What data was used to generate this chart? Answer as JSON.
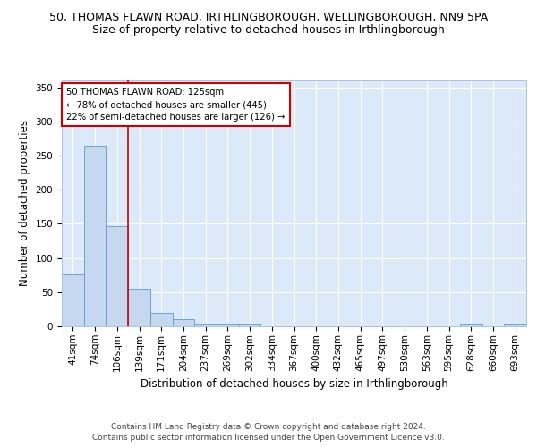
{
  "title_line1": "50, THOMAS FLAWN ROAD, IRTHLINGBOROUGH, WELLINGBOROUGH, NN9 5PA",
  "title_line2": "Size of property relative to detached houses in Irthlingborough",
  "xlabel": "Distribution of detached houses by size in Irthlingborough",
  "ylabel": "Number of detached properties",
  "categories": [
    "41sqm",
    "74sqm",
    "106sqm",
    "139sqm",
    "171sqm",
    "204sqm",
    "237sqm",
    "269sqm",
    "302sqm",
    "334sqm",
    "367sqm",
    "400sqm",
    "432sqm",
    "465sqm",
    "497sqm",
    "530sqm",
    "563sqm",
    "595sqm",
    "628sqm",
    "660sqm",
    "693sqm"
  ],
  "values": [
    76,
    264,
    146,
    55,
    19,
    11,
    4,
    4,
    4,
    0,
    0,
    0,
    0,
    0,
    0,
    0,
    0,
    0,
    4,
    0,
    4
  ],
  "bar_color": "#c5d8f0",
  "bar_edge_color": "#5b9bd5",
  "background_color": "#dce9f8",
  "grid_color": "#ffffff",
  "annotation_line1": "50 THOMAS FLAWN ROAD: 125sqm",
  "annotation_line2": "← 78% of detached houses are smaller (445)",
  "annotation_line3": "22% of semi-detached houses are larger (126) →",
  "annotation_box_color": "#ffffff",
  "annotation_box_edge": "#cc0000",
  "red_line_x": 2.5,
  "ylim": [
    0,
    360
  ],
  "yticks": [
    0,
    50,
    100,
    150,
    200,
    250,
    300,
    350
  ],
  "footer_line1": "Contains HM Land Registry data © Crown copyright and database right 2024.",
  "footer_line2": "Contains public sector information licensed under the Open Government Licence v3.0.",
  "title_fontsize": 9,
  "subtitle_fontsize": 9,
  "axis_label_fontsize": 8.5,
  "tick_fontsize": 7.5,
  "footer_fontsize": 6.5
}
